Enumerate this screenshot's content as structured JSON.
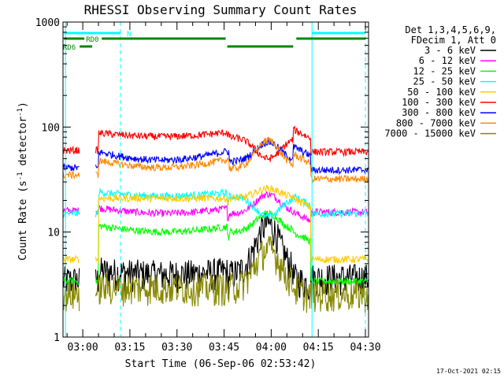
{
  "chart_data": {
    "type": "line",
    "title": "RHESSI Observing Summary Count Rates",
    "xlabel": "Start Time (06-Sep-06 02:53:42)",
    "ylabel_main": "Count Rate (s",
    "ylabel_sup1": "-1",
    "ylabel_mid": " detector",
    "ylabel_sup2": "-1",
    "ylabel_end": ")",
    "yscale": "log",
    "ylim": [
      1,
      1000
    ],
    "xlim": [
      "02:53:42",
      "04:31:00"
    ],
    "xticks": [
      "03:00",
      "03:15",
      "03:30",
      "03:45",
      "04:00",
      "04:15",
      "04:30"
    ],
    "yticks": [
      "1",
      "10",
      "100",
      "1000"
    ],
    "grid": false,
    "legend_position": "right",
    "legend_header": [
      "Det 1,3,4,5,6,9,",
      "FDecim 1, Att 0"
    ],
    "footer_date": "17-Oct-2021 02:15",
    "series": [
      {
        "name": "3 - 6 keV",
        "color": "#000000",
        "baseline": 4.0,
        "peak": 12.0,
        "day_start": 4.3,
        "day_end": 3.8,
        "pre": 3.5,
        "post": 3.7
      },
      {
        "name": "6 - 12 keV",
        "color": "#ff00ff",
        "baseline": 15.0,
        "peak": 23.0,
        "day_start": 17.0,
        "day_end": 15.5,
        "pre": 16.0,
        "post": 15.5
      },
      {
        "name": "12 - 25 keV",
        "color": "#00ff00",
        "baseline": 10.0,
        "peak": 15.0,
        "day_start": 11.5,
        "day_end": 10.0,
        "pre": 3.4,
        "post": 3.4
      },
      {
        "name": "25 - 50 keV",
        "color": "#00ffff",
        "baseline": 22.0,
        "peak": 14.0,
        "day_start": 24.0,
        "day_end": 22.0,
        "pre": 15.0,
        "post": 15.0
      },
      {
        "name": "50 - 100 keV",
        "color": "#ffcc00",
        "baseline": 21.0,
        "peak": 26.0,
        "day_start": 21.0,
        "day_end": 21.0,
        "pre": 5.5,
        "post": 5.5
      },
      {
        "name": "100 - 300 keV",
        "color": "#ff0000",
        "baseline": 80.0,
        "peak": 50.0,
        "day_start": 88.0,
        "day_end": 95.0,
        "pre": 60.0,
        "post": 58.0
      },
      {
        "name": "300 - 800 keV",
        "color": "#0000ff",
        "baseline": 47.0,
        "peak": 72.0,
        "day_start": 58.0,
        "day_end": 65.0,
        "pre": 41.0,
        "post": 39.0
      },
      {
        "name": "800 - 7000 keV",
        "color": "#ff8800",
        "baseline": 40.0,
        "peak": 75.0,
        "day_start": 48.0,
        "day_end": 55.0,
        "pre": 35.0,
        "post": 32.0
      },
      {
        "name": "7000 - 15000 keV",
        "color": "#888800",
        "baseline": 3.0,
        "peak": 7.0,
        "day_start": 3.0,
        "day_end": 3.0,
        "pre": 2.6,
        "post": 2.6
      }
    ],
    "time_segments": {
      "pre_day_end": "02:59:00",
      "gap_end": "03:04:00",
      "night_start": "03:05:00",
      "flare_start": "03:46:00",
      "flare_peak": "03:59:00",
      "flare_end": "04:07:00",
      "night_end": "04:12:30"
    },
    "annotations": [
      {
        "label": "N",
        "color": "#00ffff",
        "segments": [
          [
            "02:54:00",
            "03:12:00"
          ],
          [
            "04:13:00",
            "04:30:00"
          ]
        ],
        "level": 0
      },
      {
        "label": "RD0",
        "color": "#008800",
        "segments": [
          [
            "02:54:00",
            "03:45:30"
          ],
          [
            "04:08:00",
            "04:30:00"
          ]
        ],
        "level": 1
      },
      {
        "label": "RD6",
        "color": "#008800",
        "segments": [
          [
            "02:59:00",
            "03:03:00"
          ],
          [
            "03:46:00",
            "04:07:00"
          ]
        ],
        "level": 2
      }
    ],
    "vertical_markers": {
      "solid": {
        "color": "#00ffff",
        "times": [
          "02:54:30",
          "04:13:00"
        ]
      },
      "dashed": {
        "color": "#00ffff",
        "times": [
          "03:12:00",
          "04:30:00"
        ]
      }
    }
  }
}
